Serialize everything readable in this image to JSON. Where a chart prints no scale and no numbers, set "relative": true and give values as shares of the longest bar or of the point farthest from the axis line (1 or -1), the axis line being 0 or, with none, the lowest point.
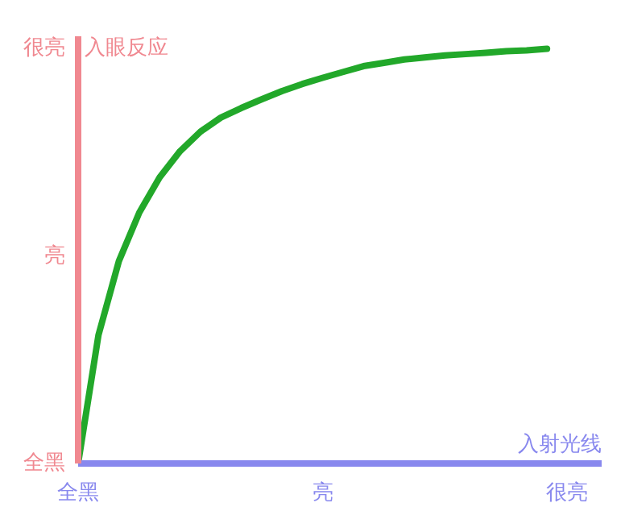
{
  "chart_data": {
    "type": "line",
    "xlabel": "入射光线",
    "ylabel": "入眼反应",
    "relative": true,
    "categories": [
      "全黑",
      null,
      null,
      null,
      null,
      null,
      null,
      null,
      null,
      null,
      null,
      null,
      "亮",
      null,
      null,
      null,
      null,
      null,
      null,
      null,
      null,
      null,
      null,
      null,
      "很亮"
    ],
    "series": [
      {
        "color": "#22a82a",
        "values": [
          0,
          0.31,
          0.488,
          0.605,
          0.69,
          0.753,
          0.8,
          0.834,
          0.857,
          0.878,
          0.898,
          0.915,
          0.93,
          0.944,
          0.958,
          0.966,
          0.974,
          0.979,
          0.984,
          0.987,
          0.99,
          0.994,
          0.996,
          1,
          null
        ]
      }
    ],
    "annotations": [
      "全黑",
      "亮",
      "很亮"
    ],
    "marker": "none",
    "line_style": "solid"
  }
}
